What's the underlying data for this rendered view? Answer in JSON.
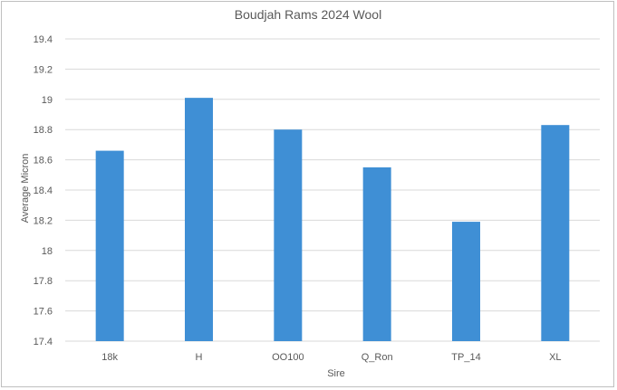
{
  "chart_data": {
    "type": "bar",
    "title": "Boudjah Rams 2024 Wool",
    "xlabel": "Sire",
    "ylabel": "Average Micron",
    "categories": [
      "18k",
      "H",
      "OO100",
      "Q_Ron",
      "TP_14",
      "XL"
    ],
    "values": [
      18.66,
      19.01,
      18.8,
      18.55,
      18.19,
      18.83
    ],
    "ylim": [
      17.4,
      19.4
    ],
    "yticks": [
      "17.4",
      "17.6",
      "17.8",
      "18",
      "18.2",
      "18.4",
      "18.6",
      "18.8",
      "19",
      "19.2",
      "19.4"
    ],
    "grid": true,
    "legend": "none",
    "colors": {
      "bar": "#3f8fd5",
      "grid": "#d9d9d9",
      "text": "#595959",
      "frame": "#bfbfbf"
    }
  }
}
